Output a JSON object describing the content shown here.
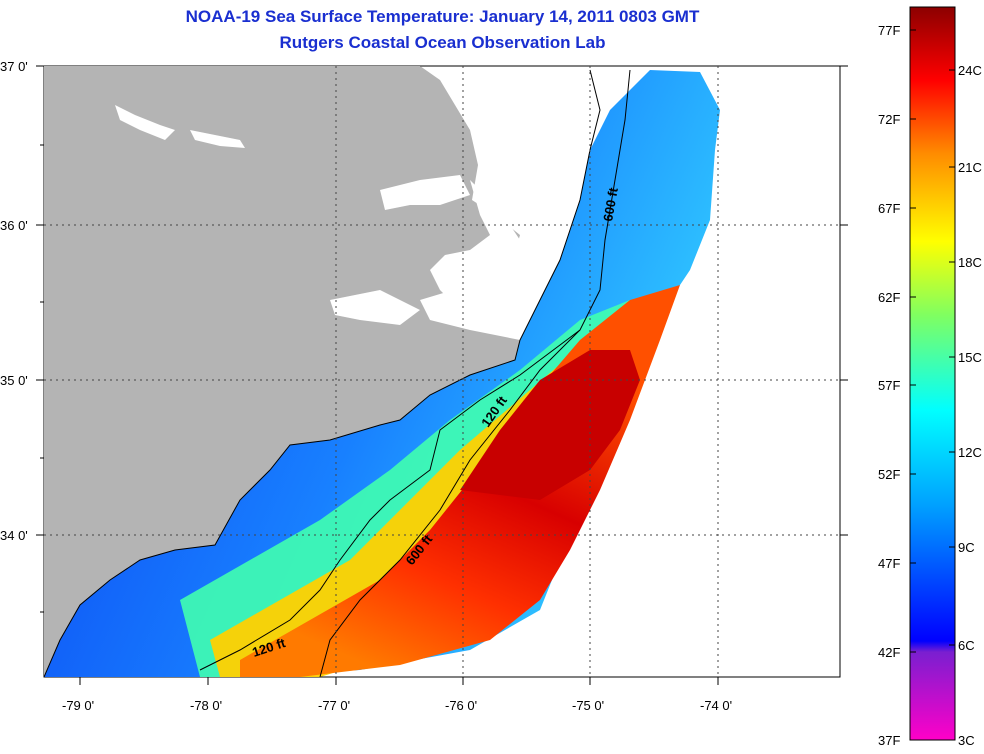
{
  "title": "NOAA-19 Sea Surface Temperature:  January 14, 2011 0803 GMT",
  "subtitle": "Rutgers Coastal Ocean Observation Lab",
  "lat_labels": [
    "37 0'",
    "36 0'",
    "35 0'",
    "34 0'"
  ],
  "lon_labels": [
    "-79 0'",
    "-78 0'",
    "-77 0'",
    "-76 0'",
    "-75 0'",
    "-74 0'"
  ],
  "contours": {
    "c600_upper": "600 ft",
    "c120_mid": "120 ft",
    "c600_lower": "600 ft",
    "c120_lower": "120 ft"
  },
  "colorbar": {
    "fahrenheit": [
      "77F",
      "72F",
      "67F",
      "62F",
      "57F",
      "52F",
      "47F",
      "42F",
      "37F"
    ],
    "celsius": [
      "24C",
      "21C",
      "18C",
      "15C",
      "12C",
      "9C",
      "6C",
      "3C"
    ]
  },
  "colors": {
    "title": "#1a2fd0",
    "land": "#b4b4b4",
    "ocean_warm": "#d40000",
    "ocean_cold": "#1030f0"
  }
}
